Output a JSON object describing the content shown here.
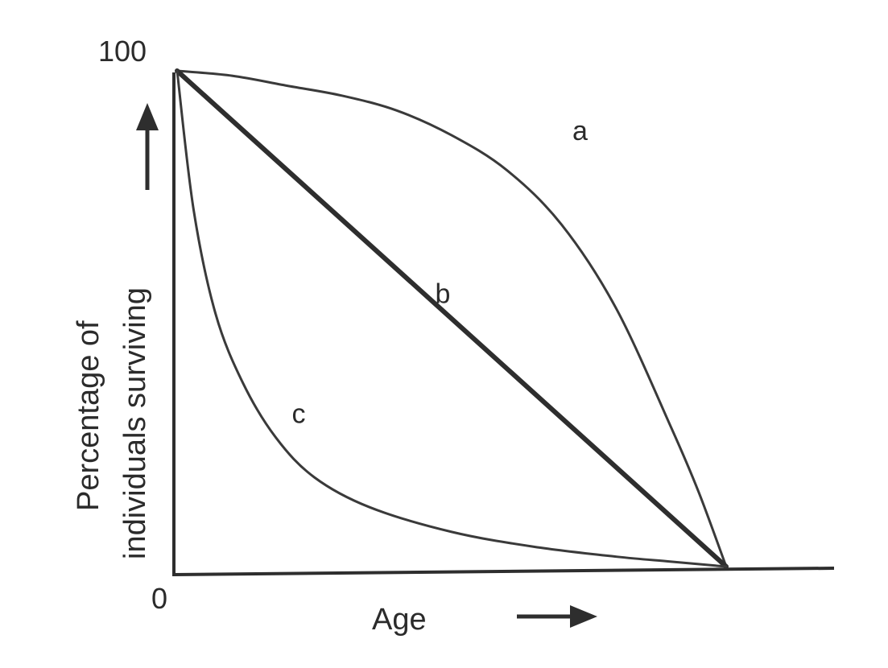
{
  "chart_data": {
    "type": "line",
    "title": "",
    "xlabel": "Age",
    "ylabel_line1": "Percentage of",
    "ylabel_line2": "individuals surviving",
    "y_tick_labels": [
      "100",
      "0"
    ],
    "ylim": [
      0,
      100
    ],
    "grid": false,
    "series": [
      {
        "name": "a",
        "x": [
          0,
          0.1,
          0.2,
          0.3,
          0.4,
          0.5,
          0.6,
          0.7,
          0.8,
          0.9,
          0.95,
          1.0
        ],
        "y": [
          100,
          99,
          97,
          95,
          92,
          87,
          80,
          69,
          52,
          28,
          15,
          0
        ]
      },
      {
        "name": "b",
        "x": [
          0,
          1.0
        ],
        "y": [
          100,
          0
        ]
      },
      {
        "name": "c",
        "x": [
          0,
          0.03,
          0.07,
          0.12,
          0.18,
          0.25,
          0.35,
          0.5,
          0.65,
          0.8,
          0.9,
          1.0
        ],
        "y": [
          100,
          72,
          51,
          37,
          26,
          18,
          12,
          7,
          4,
          2,
          1,
          0
        ]
      }
    ]
  }
}
